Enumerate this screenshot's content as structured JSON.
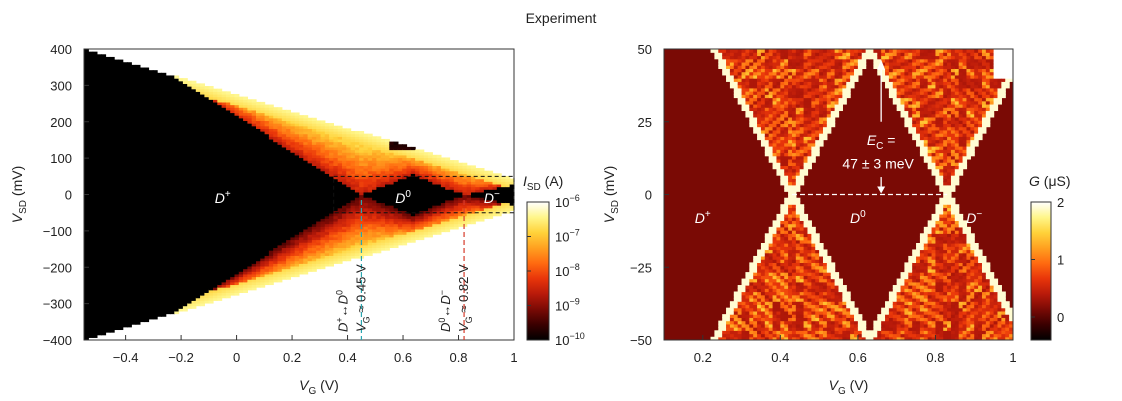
{
  "figure_title": "Experiment",
  "colors": {
    "map": [
      "#000000",
      "#3a0000",
      "#7a0a05",
      "#b81a0a",
      "#e8350a",
      "#ff6a10",
      "#ffa020",
      "#ffd23a",
      "#fff68a",
      "#ffffff"
    ],
    "cyan_marker": "#2aa6b0",
    "red_marker": "#d63a2a",
    "left_background": "#ffffff",
    "right_background": "#7a0a05"
  },
  "chart_data": [
    {
      "type": "heatmap",
      "name": "left-panel",
      "xlabel_main": "V",
      "xlabel_sub": "G",
      "xlabel_unit": " (V)",
      "ylabel_main": "V",
      "ylabel_sub": "SD",
      "ylabel_unit": " (mV)",
      "xlim": [
        -0.55,
        1.0
      ],
      "ylim": [
        -400,
        400
      ],
      "x_ticks": [
        -0.4,
        -0.2,
        0,
        0.2,
        0.4,
        0.6,
        0.8,
        1
      ],
      "x_tick_labels": [
        "−0.4",
        "−0.2",
        "0",
        "0.2",
        "0.4",
        "0.6",
        "0.8",
        "1"
      ],
      "y_ticks": [
        400,
        300,
        200,
        100,
        0,
        -100,
        -200,
        -300,
        -400
      ],
      "y_tick_labels": [
        "400",
        "300",
        "200",
        "100",
        "0",
        "−100",
        "−200",
        "−300",
        "−400"
      ],
      "colorbar": {
        "label_main": "I",
        "label_sub": "SD",
        "label_unit": " (A)",
        "scale": "log",
        "range": [
          1e-10,
          1e-06
        ],
        "ticks": [
          {
            "base": "10",
            "exp": "−6"
          },
          {
            "base": "10",
            "exp": "−7"
          },
          {
            "base": "10",
            "exp": "−8"
          },
          {
            "base": "10",
            "exp": "−9"
          },
          {
            "base": "10",
            "exp": "−10"
          }
        ]
      },
      "regions": [
        {
          "base": "D",
          "sup": "+",
          "x": -0.05,
          "y": -10
        },
        {
          "base": "D",
          "sup": "0",
          "x": 0.6,
          "y": -10
        },
        {
          "base": "D",
          "sup": "−",
          "x": 0.92,
          "y": -10
        }
      ],
      "degeneracy_points": [
        {
          "transition_from": "D",
          "from_sup": "+",
          "arrow": "↔",
          "transition_to": "D",
          "to_sup": "0",
          "vg_label": "V",
          "vg_sub": "G",
          "vg_value": " ≈ 0.45 V",
          "x": 0.45,
          "color": "cyan_marker"
        },
        {
          "transition_from": "D",
          "from_sup": "0",
          "arrow": "↔",
          "transition_to": "D",
          "to_sup": "−",
          "vg_label": "V",
          "vg_sub": "G",
          "vg_value": " ≈ 0.82 V",
          "x": 0.82,
          "color": "red_marker"
        }
      ],
      "zoom_box": {
        "x0": 0.35,
        "x1": 1.0,
        "y0": -50,
        "y1": 50
      }
    },
    {
      "type": "heatmap",
      "name": "right-panel",
      "xlabel_main": "V",
      "xlabel_sub": "G",
      "xlabel_unit": " (V)",
      "ylabel_main": "V",
      "ylabel_sub": "SD",
      "ylabel_unit": " (mV)",
      "xlim": [
        0.1,
        1.0
      ],
      "ylim": [
        -50,
        50
      ],
      "x_ticks": [
        0.2,
        0.4,
        0.6,
        0.8,
        1
      ],
      "x_tick_labels": [
        "0.2",
        "0.4",
        "0.6",
        "0.8",
        "1"
      ],
      "y_ticks": [
        50,
        25,
        0,
        -25,
        -50
      ],
      "y_tick_labels": [
        "50",
        "25",
        "0",
        "−25",
        "−50"
      ],
      "colorbar": {
        "label_main": "G",
        "label_unit": " (μS)",
        "scale": "linear",
        "range": [
          -0.4,
          2.0
        ],
        "ticks": [
          "2",
          "1",
          "0"
        ],
        "tick_values": [
          2,
          1,
          0
        ]
      },
      "regions": [
        {
          "base": "D",
          "sup": "+",
          "x": 0.2,
          "y": -8
        },
        {
          "base": "D",
          "sup": "0",
          "x": 0.6,
          "y": -8
        },
        {
          "base": "D",
          "sup": "−",
          "x": 0.9,
          "y": -8
        }
      ],
      "degeneracy_points_vg": [
        0.43,
        0.83
      ],
      "charging_energy": {
        "label_main": "E",
        "label_sub": "C",
        "label_eq": " =",
        "value": "47 ± 3 meV",
        "x": 0.66,
        "y_top": 47,
        "y_bottom": 0
      }
    }
  ]
}
